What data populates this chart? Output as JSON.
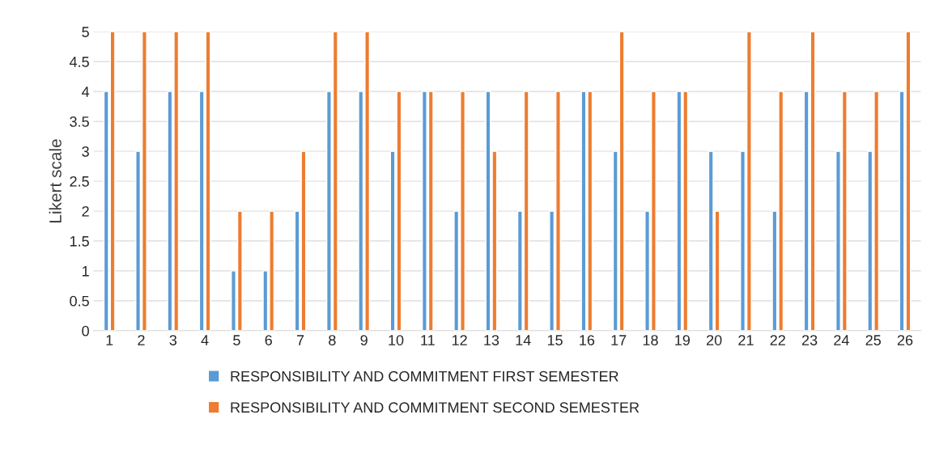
{
  "chart_data": {
    "type": "bar",
    "ylabel": "Likert scale",
    "categories": [
      "1",
      "2",
      "3",
      "4",
      "5",
      "6",
      "7",
      "8",
      "9",
      "10",
      "11",
      "12",
      "13",
      "14",
      "15",
      "16",
      "17",
      "18",
      "19",
      "20",
      "21",
      "22",
      "23",
      "24",
      "25",
      "26"
    ],
    "series": [
      {
        "name": "RESPONSIBILITY AND COMMITMENT FIRST SEMESTER",
        "color": "#5b9bd5",
        "values": [
          4,
          3,
          4,
          4,
          1,
          1,
          2,
          4,
          4,
          3,
          4,
          2,
          4,
          2,
          2,
          4,
          3,
          2,
          4,
          3,
          3,
          2,
          4,
          3,
          3,
          4
        ]
      },
      {
        "name": "RESPONSIBILITY AND COMMITMENT SECOND SEMESTER",
        "color": "#ed7d31",
        "values": [
          5,
          5,
          5,
          5,
          2,
          2,
          3,
          5,
          5,
          4,
          4,
          4,
          3,
          4,
          4,
          4,
          5,
          4,
          4,
          2,
          5,
          4,
          5,
          4,
          4,
          5
        ]
      }
    ],
    "ylim": [
      0,
      5
    ],
    "yticks": [
      0,
      0.5,
      1,
      1.5,
      2,
      2.5,
      3,
      3.5,
      4,
      4.5,
      5
    ],
    "grid": "y",
    "legend": "bottom"
  }
}
